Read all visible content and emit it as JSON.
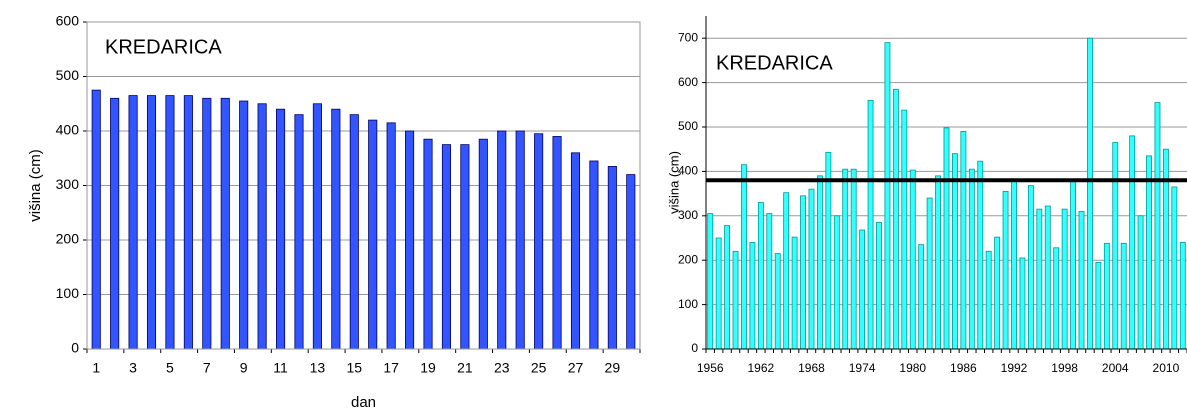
{
  "chart_data": [
    {
      "type": "bar",
      "title": "KREDARICA",
      "ylabel": "višina (cm)",
      "xlabel": "dan",
      "categories": [
        "1",
        null,
        "3",
        null,
        "5",
        null,
        "7",
        null,
        "9",
        null,
        "11",
        null,
        "13",
        null,
        "15",
        null,
        "17",
        null,
        "19",
        null,
        "21",
        null,
        "23",
        null,
        "25",
        null,
        "27",
        null,
        "29",
        null
      ],
      "values": [
        475,
        460,
        465,
        465,
        465,
        465,
        460,
        460,
        455,
        450,
        440,
        430,
        450,
        440,
        430,
        420,
        415,
        400,
        385,
        375,
        375,
        385,
        400,
        400,
        395,
        390,
        360,
        345,
        335,
        320
      ],
      "color": "#3355ff",
      "ylim": [
        0,
        600
      ],
      "yticks": [
        0,
        100,
        200,
        300,
        400,
        500,
        600
      ],
      "grid": true
    },
    {
      "type": "bar",
      "title": "KREDARICA",
      "ylabel": "višina (cm)",
      "categories": [
        "1956",
        null,
        null,
        null,
        null,
        null,
        "1962",
        null,
        null,
        null,
        null,
        null,
        "1968",
        null,
        null,
        null,
        null,
        null,
        "1974",
        null,
        null,
        null,
        null,
        null,
        "1980",
        null,
        null,
        null,
        null,
        null,
        "1986",
        null,
        null,
        null,
        null,
        null,
        "1992",
        null,
        null,
        null,
        null,
        null,
        "1998",
        null,
        null,
        null,
        null,
        null,
        "2004",
        null,
        null,
        null,
        null,
        null,
        "2010",
        null,
        null
      ],
      "values": [
        305,
        250,
        278,
        220,
        415,
        240,
        330,
        305,
        215,
        352,
        252,
        345,
        360,
        390,
        443,
        300,
        405,
        405,
        268,
        560,
        285,
        690,
        585,
        538,
        403,
        235,
        340,
        390,
        498,
        440,
        490,
        405,
        423,
        220,
        252,
        355,
        380,
        205,
        368,
        315,
        322,
        228,
        315,
        380,
        310,
        700,
        195,
        238,
        465,
        238,
        480,
        300,
        435,
        555,
        450,
        365,
        240
      ],
      "color": "#33ffff",
      "reference_line": 380,
      "ylim": [
        0,
        750
      ],
      "yticks": [
        0,
        100,
        200,
        300,
        400,
        500,
        600,
        700
      ],
      "grid": true
    }
  ]
}
